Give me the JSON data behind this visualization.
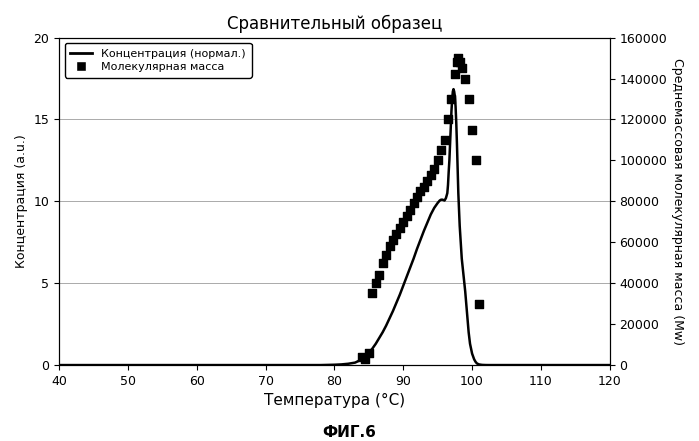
{
  "title": "Сравнительный образец",
  "xlabel": "Температура (°C)",
  "ylabel_left": "Концентрация (a.u.)",
  "ylabel_right": "Среднемассовая молекулярная масса (Mw)",
  "fig_label": "ФИГ.6",
  "xlim": [
    40,
    120
  ],
  "ylim_left": [
    0.0,
    20.0
  ],
  "ylim_right": [
    0,
    160000
  ],
  "xticks": [
    40,
    50,
    60,
    70,
    80,
    90,
    100,
    110,
    120
  ],
  "yticks_left": [
    0.0,
    5.0,
    10.0,
    15.0,
    20.0
  ],
  "yticks_right": [
    0,
    20000,
    40000,
    60000,
    80000,
    100000,
    120000,
    140000,
    160000
  ],
  "legend_line": "Концентрация (нормал.)",
  "legend_scatter": "Молекулярная масса",
  "conc_x": [
    40,
    60,
    70,
    75,
    78,
    80,
    81,
    82,
    83,
    83.5,
    84,
    84.5,
    85,
    85.5,
    86,
    86.5,
    87,
    87.5,
    88,
    88.5,
    89,
    89.5,
    90,
    90.5,
    91,
    91.5,
    92,
    92.5,
    93,
    93.5,
    94,
    94.5,
    95,
    95.3,
    95.5,
    95.7,
    96,
    96.2,
    96.4,
    96.5,
    96.6,
    96.7,
    96.8,
    96.9,
    97.0,
    97.1,
    97.2,
    97.3,
    97.4,
    97.5,
    97.6,
    97.7,
    97.8,
    97.9,
    98.0,
    98.2,
    98.5,
    99.0,
    99.3,
    99.5,
    99.7,
    100.0,
    100.3,
    100.5,
    100.7,
    101.0,
    101.3,
    101.5,
    101.8,
    102.0,
    102.2,
    102.5,
    103,
    105,
    110,
    120
  ],
  "conc_y": [
    0,
    0,
    0,
    0,
    0,
    0.02,
    0.04,
    0.08,
    0.15,
    0.25,
    0.4,
    0.55,
    0.75,
    1.0,
    1.3,
    1.65,
    2.0,
    2.4,
    2.85,
    3.3,
    3.8,
    4.3,
    4.85,
    5.4,
    5.95,
    6.5,
    7.1,
    7.65,
    8.2,
    8.7,
    9.2,
    9.6,
    9.9,
    10.05,
    10.1,
    10.1,
    10.05,
    10.2,
    10.5,
    11.0,
    11.8,
    12.5,
    13.5,
    14.5,
    15.5,
    16.2,
    16.7,
    16.85,
    16.7,
    16.4,
    15.8,
    14.8,
    13.5,
    12.0,
    10.5,
    8.5,
    6.5,
    4.5,
    3.0,
    2.0,
    1.3,
    0.7,
    0.35,
    0.2,
    0.1,
    0.04,
    0.02,
    0.01,
    0.005,
    0.002,
    0.001,
    0,
    0,
    0,
    0,
    0
  ],
  "mw_x": [
    84.0,
    84.5,
    85.0,
    85.5,
    86.0,
    86.5,
    87.0,
    87.5,
    88.0,
    88.5,
    89.0,
    89.5,
    90.0,
    90.5,
    91.0,
    91.5,
    92.0,
    92.5,
    93.0,
    93.5,
    94.0,
    94.5,
    95.0,
    95.5,
    96.0,
    96.5,
    97.0,
    97.5,
    97.8,
    98.0,
    98.3,
    98.6,
    99.0,
    99.5,
    100.0,
    100.5,
    101.0
  ],
  "mw_y": [
    4000,
    3000,
    6000,
    35000,
    40000,
    44000,
    50000,
    54000,
    58000,
    61000,
    64000,
    67000,
    70000,
    73000,
    76000,
    79000,
    82000,
    85000,
    87000,
    90000,
    93000,
    96000,
    100000,
    105000,
    110000,
    120000,
    130000,
    142000,
    148000,
    150000,
    148000,
    145000,
    140000,
    130000,
    115000,
    100000,
    30000
  ],
  "background_color": "#ffffff",
  "line_color": "#000000",
  "scatter_color": "#000000",
  "grid_color": "#888888"
}
